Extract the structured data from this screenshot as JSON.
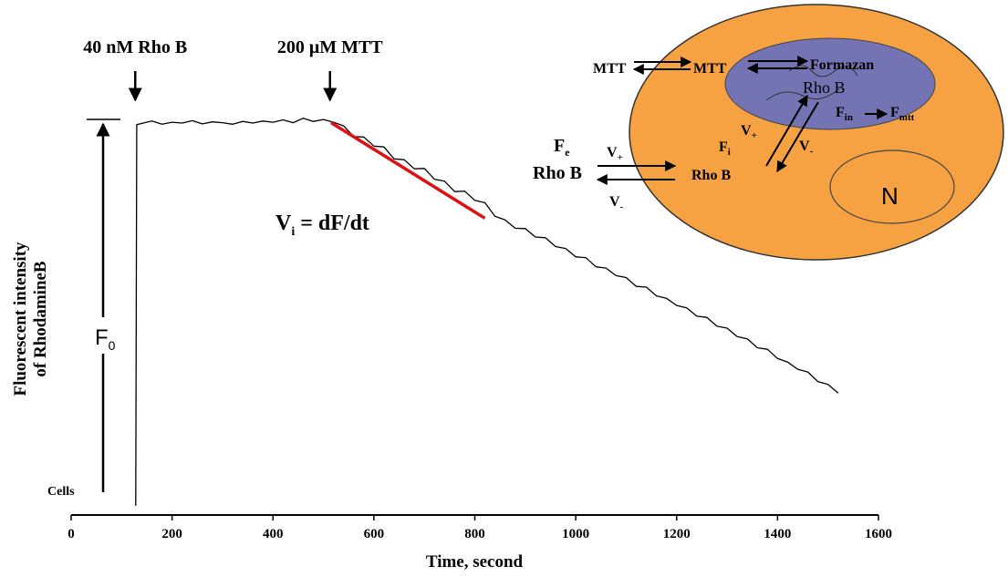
{
  "chart_data": {
    "type": "line",
    "xlabel": "Time, second",
    "ylabel": [
      "Fluorescent intensity",
      "of RhodamineB"
    ],
    "xlim": [
      0,
      1600
    ],
    "xticks": [
      0,
      200,
      400,
      600,
      800,
      1000,
      1200,
      1400,
      1600
    ],
    "ylim": [
      0,
      100
    ],
    "series": [
      {
        "color": "#000000",
        "x": [
          128,
          130,
          140,
          160,
          180,
          200,
          220,
          240,
          260,
          280,
          300,
          320,
          340,
          360,
          380,
          400,
          420,
          440,
          460,
          480,
          500,
          520,
          540,
          560,
          580,
          600,
          620,
          640,
          660,
          680,
          700,
          720,
          740,
          760,
          780,
          800,
          820,
          840,
          860,
          880,
          900,
          920,
          940,
          960,
          980,
          1000,
          1020,
          1040,
          1060,
          1080,
          1100,
          1120,
          1140,
          1160,
          1180,
          1200,
          1220,
          1240,
          1260,
          1280,
          1300,
          1320,
          1340,
          1360,
          1380,
          1400,
          1420,
          1440,
          1460,
          1480,
          1500,
          1520
        ],
        "values": [
          2.3,
          98.0,
          98.3,
          98.9,
          98.1,
          98.6,
          98.4,
          99.0,
          98.2,
          98.7,
          98.5,
          98.1,
          98.8,
          98.4,
          98.9,
          98.6,
          99.2,
          98.5,
          99.6,
          98.8,
          99.3,
          98.6,
          97.7,
          95.0,
          94.9,
          92.6,
          92.4,
          89.4,
          89.2,
          86.9,
          87.0,
          84.3,
          83.8,
          81.2,
          81.3,
          79.0,
          78.4,
          75.0,
          74.1,
          72.0,
          71.9,
          69.8,
          69.6,
          67.4,
          66.9,
          64.8,
          64.6,
          62.3,
          62.0,
          60.1,
          59.6,
          57.4,
          57.2,
          55.0,
          54.4,
          52.6,
          52.0,
          49.9,
          49.6,
          47.4,
          46.9,
          44.8,
          44.2,
          42.0,
          41.6,
          39.3,
          38.4,
          36.6,
          35.9,
          33.5,
          32.8,
          30.6
        ]
      }
    ],
    "fit_line": {
      "color": "#e01010",
      "x": [
        515,
        820
      ],
      "values": [
        98.5,
        74.5
      ]
    },
    "annotations": [
      {
        "text": "40 nM Rho B",
        "x": 127
      },
      {
        "text": "200 μM MTT",
        "x": 513
      }
    ],
    "rate_label": {
      "main": "V",
      "sub": "i",
      "rest": " = dF/dt"
    },
    "f0_label": {
      "main": "F",
      "sub": "0"
    },
    "cells_label": "Cells",
    "inset": {
      "mtt_out": "MTT",
      "mtt_in": "MTT",
      "formazan": "Formazan",
      "rho_b_inner": "Rho B",
      "f_in": {
        "main": "F",
        "sub": "in"
      },
      "f_mtt": {
        "main": "F",
        "sub": "mtt"
      },
      "v_plus_inner": {
        "main": "V",
        "sub": "+"
      },
      "v_minus_inner": {
        "main": "V",
        "sub": "-"
      },
      "f_e": {
        "main": "F",
        "sub": "e"
      },
      "rho_b_out": "Rho B",
      "v_plus_outer": {
        "main": "V",
        "sub": "+"
      },
      "v_minus_outer": {
        "main": "V",
        "sub": "-"
      },
      "f_i": {
        "main": "F",
        "sub": "i"
      },
      "rho_b_cell": "Rho B",
      "nucleus": "N"
    }
  }
}
